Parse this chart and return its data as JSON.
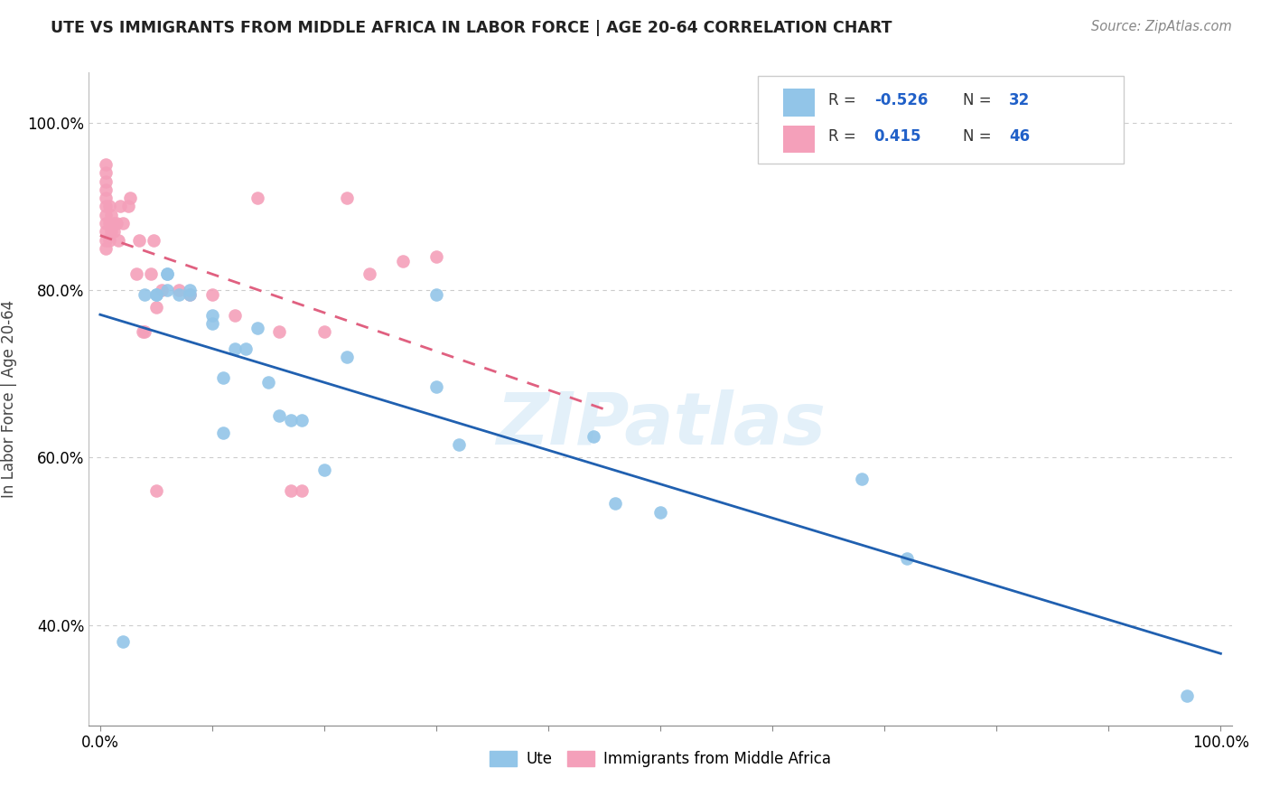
{
  "title": "UTE VS IMMIGRANTS FROM MIDDLE AFRICA IN LABOR FORCE | AGE 20-64 CORRELATION CHART",
  "source": "Source: ZipAtlas.com",
  "ylabel": "In Labor Force | Age 20-64",
  "watermark": "ZIPatlas",
  "legend_r_ute": "-0.526",
  "legend_n_ute": "32",
  "legend_r_immig": "0.415",
  "legend_n_immig": "46",
  "ute_color": "#92C5E8",
  "immig_color": "#F4A0BA",
  "ute_line_color": "#2060B0",
  "immig_line_color": "#E06080",
  "ute_points_x": [
    0.02,
    0.14,
    0.3,
    0.04,
    0.05,
    0.06,
    0.05,
    0.06,
    0.07,
    0.06,
    0.08,
    0.08,
    0.1,
    0.1,
    0.11,
    0.11,
    0.13,
    0.15,
    0.16,
    0.17,
    0.18,
    0.2,
    0.22,
    0.3,
    0.32,
    0.44,
    0.46,
    0.5,
    0.68,
    0.72,
    0.97,
    0.12
  ],
  "ute_points_y": [
    0.38,
    0.755,
    0.795,
    0.795,
    0.795,
    0.82,
    0.795,
    0.82,
    0.795,
    0.8,
    0.8,
    0.795,
    0.76,
    0.77,
    0.695,
    0.63,
    0.73,
    0.69,
    0.65,
    0.645,
    0.645,
    0.585,
    0.72,
    0.685,
    0.615,
    0.625,
    0.545,
    0.535,
    0.575,
    0.48,
    0.315,
    0.73
  ],
  "immig_points_x": [
    0.005,
    0.005,
    0.005,
    0.005,
    0.005,
    0.005,
    0.005,
    0.005,
    0.005,
    0.005,
    0.005,
    0.008,
    0.008,
    0.008,
    0.01,
    0.01,
    0.012,
    0.012,
    0.015,
    0.016,
    0.018,
    0.02,
    0.025,
    0.027,
    0.032,
    0.035,
    0.038,
    0.04,
    0.045,
    0.048,
    0.05,
    0.055,
    0.07,
    0.08,
    0.1,
    0.12,
    0.14,
    0.16,
    0.17,
    0.18,
    0.2,
    0.22,
    0.24,
    0.27,
    0.3,
    0.05
  ],
  "immig_points_y": [
    0.87,
    0.88,
    0.89,
    0.9,
    0.91,
    0.92,
    0.93,
    0.94,
    0.95,
    0.85,
    0.86,
    0.86,
    0.9,
    0.88,
    0.87,
    0.89,
    0.88,
    0.87,
    0.88,
    0.86,
    0.9,
    0.88,
    0.9,
    0.91,
    0.82,
    0.86,
    0.75,
    0.75,
    0.82,
    0.86,
    0.78,
    0.8,
    0.8,
    0.795,
    0.795,
    0.77,
    0.91,
    0.75,
    0.56,
    0.56,
    0.75,
    0.91,
    0.82,
    0.835,
    0.84,
    0.56
  ]
}
